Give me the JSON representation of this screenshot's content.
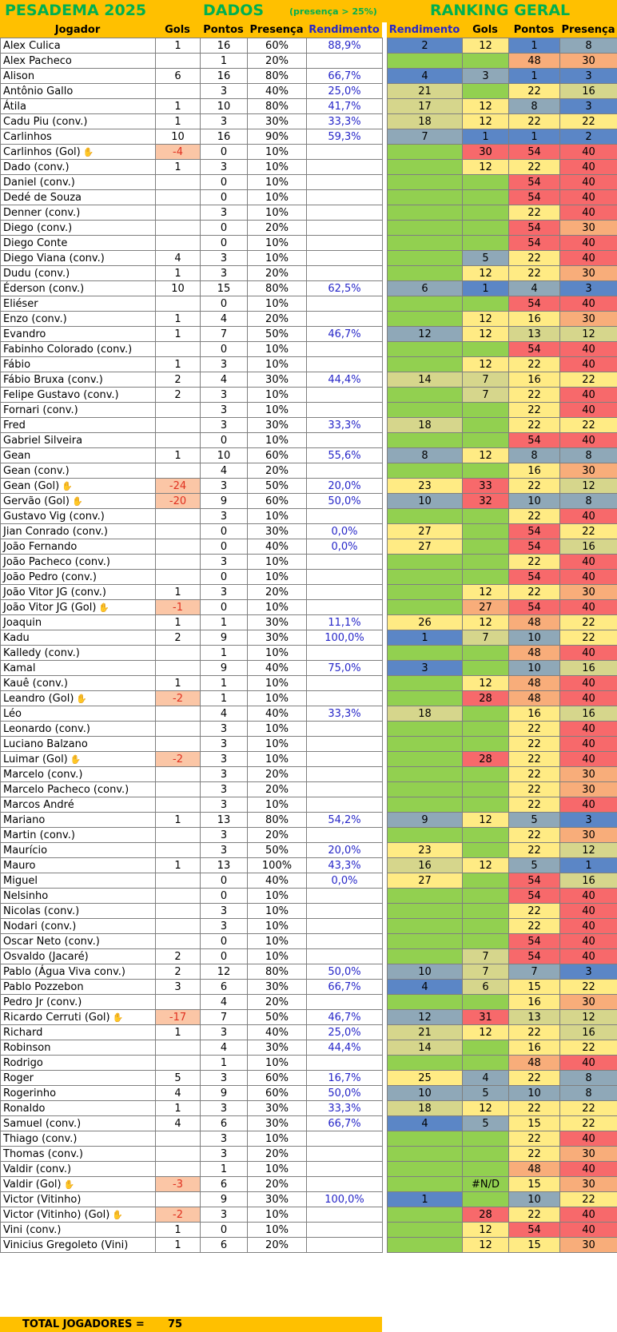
{
  "title": {
    "main": "PESADEMA 2025",
    "dados": "DADOS",
    "note": "(presença > 25%)",
    "ranking": "RANKING GERAL"
  },
  "headers": {
    "jogador": "Jogador",
    "gols": "Gols",
    "pontos": "Pontos",
    "presenca": "Presença",
    "rendimento": "Rendimento",
    "r_rendimento": "Rendimento",
    "r_gols": "Gols",
    "r_pontos": "Pontos",
    "r_presenca": "Presença"
  },
  "colors": {
    "header": "#ffc000",
    "green": "#92d050",
    "yellow": "#ffeb84",
    "khaki": "#d6d68c",
    "grayblue": "#8fa8b8",
    "blue": "#5b86c6",
    "orange": "#f8ad7a",
    "red": "#f7696b",
    "title_green": "#00b050",
    "rend_blue": "#2626c8"
  },
  "footer": {
    "label": "TOTAL JOGADORES =",
    "count": "75"
  },
  "rows": [
    {
      "name": "Alex Culica",
      "gols": "1",
      "pontos": "16",
      "presenca": "60%",
      "rend": "88,9%",
      "rk": [
        "2",
        "12",
        "1",
        "8"
      ]
    },
    {
      "name": "Alex Pacheco",
      "gols": "",
      "pontos": "1",
      "presenca": "20%",
      "rend": "",
      "rk": [
        "",
        "",
        "48",
        "30"
      ]
    },
    {
      "name": "Alison",
      "gols": "6",
      "pontos": "16",
      "presenca": "80%",
      "rend": "66,7%",
      "rk": [
        "4",
        "3",
        "1",
        "3"
      ]
    },
    {
      "name": "Antônio Gallo",
      "gols": "",
      "pontos": "3",
      "presenca": "40%",
      "rend": "25,0%",
      "rk": [
        "21",
        "",
        "22",
        "16"
      ]
    },
    {
      "name": "Átila",
      "gols": "1",
      "pontos": "10",
      "presenca": "80%",
      "rend": "41,7%",
      "rk": [
        "17",
        "12",
        "8",
        "3"
      ]
    },
    {
      "name": "Cadu Piu (conv.)",
      "gols": "1",
      "pontos": "3",
      "presenca": "30%",
      "rend": "33,3%",
      "rk": [
        "18",
        "12",
        "22",
        "22"
      ]
    },
    {
      "name": "Carlinhos",
      "gols": "10",
      "pontos": "16",
      "presenca": "90%",
      "rend": "59,3%",
      "rk": [
        "7",
        "1",
        "1",
        "2"
      ]
    },
    {
      "name": "Carlinhos (Gol)",
      "gk": true,
      "gols": "-4",
      "pontos": "0",
      "presenca": "10%",
      "rend": "",
      "rk": [
        "",
        "30",
        "54",
        "40"
      ]
    },
    {
      "name": "Dado (conv.)",
      "gols": "1",
      "pontos": "3",
      "presenca": "10%",
      "rend": "",
      "rk": [
        "",
        "12",
        "22",
        "40"
      ]
    },
    {
      "name": "Daniel (conv.)",
      "gols": "",
      "pontos": "0",
      "presenca": "10%",
      "rend": "",
      "rk": [
        "",
        "",
        "54",
        "40"
      ]
    },
    {
      "name": "Dedé de Souza",
      "gols": "",
      "pontos": "0",
      "presenca": "10%",
      "rend": "",
      "rk": [
        "",
        "",
        "54",
        "40"
      ]
    },
    {
      "name": "Denner (conv.)",
      "gols": "",
      "pontos": "3",
      "presenca": "10%",
      "rend": "",
      "rk": [
        "",
        "",
        "22",
        "40"
      ]
    },
    {
      "name": "Diego (conv.)",
      "gols": "",
      "pontos": "0",
      "presenca": "20%",
      "rend": "",
      "rk": [
        "",
        "",
        "54",
        "30"
      ]
    },
    {
      "name": "Diego Conte",
      "gols": "",
      "pontos": "0",
      "presenca": "10%",
      "rend": "",
      "rk": [
        "",
        "",
        "54",
        "40"
      ]
    },
    {
      "name": "Diego Viana (conv.)",
      "gols": "4",
      "pontos": "3",
      "presenca": "10%",
      "rend": "",
      "rk": [
        "",
        "5",
        "22",
        "40"
      ]
    },
    {
      "name": "Dudu  (conv.)",
      "gols": "1",
      "pontos": "3",
      "presenca": "20%",
      "rend": "",
      "rk": [
        "",
        "12",
        "22",
        "30"
      ]
    },
    {
      "name": "Éderson (conv.)",
      "gols": "10",
      "pontos": "15",
      "presenca": "80%",
      "rend": "62,5%",
      "rk": [
        "6",
        "1",
        "4",
        "3"
      ]
    },
    {
      "name": "Eliéser",
      "gols": "",
      "pontos": "0",
      "presenca": "10%",
      "rend": "",
      "rk": [
        "",
        "",
        "54",
        "40"
      ]
    },
    {
      "name": "Enzo (conv.)",
      "gols": "1",
      "pontos": "4",
      "presenca": "20%",
      "rend": "",
      "rk": [
        "",
        "12",
        "16",
        "30"
      ]
    },
    {
      "name": "Evandro",
      "gols": "1",
      "pontos": "7",
      "presenca": "50%",
      "rend": "46,7%",
      "rk": [
        "12",
        "12",
        "13",
        "12"
      ]
    },
    {
      "name": "Fabinho Colorado (conv.)",
      "gols": "",
      "pontos": "0",
      "presenca": "10%",
      "rend": "",
      "rk": [
        "",
        "",
        "54",
        "40"
      ]
    },
    {
      "name": "Fábio",
      "gols": "1",
      "pontos": "3",
      "presenca": "10%",
      "rend": "",
      "rk": [
        "",
        "12",
        "22",
        "40"
      ]
    },
    {
      "name": "Fábio Bruxa (conv.)",
      "gols": "2",
      "pontos": "4",
      "presenca": "30%",
      "rend": "44,4%",
      "rk": [
        "14",
        "7",
        "16",
        "22"
      ]
    },
    {
      "name": "Felipe Gustavo (conv.)",
      "gols": "2",
      "pontos": "3",
      "presenca": "10%",
      "rend": "",
      "rk": [
        "",
        "7",
        "22",
        "40"
      ]
    },
    {
      "name": "Fornari (conv.)",
      "gols": "",
      "pontos": "3",
      "presenca": "10%",
      "rend": "",
      "rk": [
        "",
        "",
        "22",
        "40"
      ]
    },
    {
      "name": "Fred",
      "gols": "",
      "pontos": "3",
      "presenca": "30%",
      "rend": "33,3%",
      "rk": [
        "18",
        "",
        "22",
        "22"
      ]
    },
    {
      "name": "Gabriel Silveira",
      "gols": "",
      "pontos": "0",
      "presenca": "10%",
      "rend": "",
      "rk": [
        "",
        "",
        "54",
        "40"
      ]
    },
    {
      "name": "Gean",
      "gols": "1",
      "pontos": "10",
      "presenca": "60%",
      "rend": "55,6%",
      "rk": [
        "8",
        "12",
        "8",
        "8"
      ]
    },
    {
      "name": "Gean (conv.)",
      "gols": "",
      "pontos": "4",
      "presenca": "20%",
      "rend": "",
      "rk": [
        "",
        "",
        "16",
        "30"
      ]
    },
    {
      "name": "Gean (Gol)",
      "gk": true,
      "gols": "-24",
      "pontos": "3",
      "presenca": "50%",
      "rend": "20,0%",
      "rk": [
        "23",
        "33",
        "22",
        "12"
      ]
    },
    {
      "name": "Gervão (Gol)",
      "gk": true,
      "gols": "-20",
      "pontos": "9",
      "presenca": "60%",
      "rend": "50,0%",
      "rk": [
        "10",
        "32",
        "10",
        "8"
      ]
    },
    {
      "name": "Gustavo Vig (conv.)",
      "gols": "",
      "pontos": "3",
      "presenca": "10%",
      "rend": "",
      "rk": [
        "",
        "",
        "22",
        "40"
      ]
    },
    {
      "name": "Jian Conrado (conv.)",
      "gols": "",
      "pontos": "0",
      "presenca": "30%",
      "rend": "0,0%",
      "rk": [
        "27",
        "",
        "54",
        "22"
      ]
    },
    {
      "name": "João Fernando",
      "gols": "",
      "pontos": "0",
      "presenca": "40%",
      "rend": "0,0%",
      "rk": [
        "27",
        "",
        "54",
        "16"
      ]
    },
    {
      "name": "João Pacheco (conv.)",
      "gols": "",
      "pontos": "3",
      "presenca": "10%",
      "rend": "",
      "rk": [
        "",
        "",
        "22",
        "40"
      ]
    },
    {
      "name": "João Pedro (conv.)",
      "gols": "",
      "pontos": "0",
      "presenca": "10%",
      "rend": "",
      "rk": [
        "",
        "",
        "54",
        "40"
      ]
    },
    {
      "name": "João Vitor JG (conv.)",
      "gols": "1",
      "pontos": "3",
      "presenca": "20%",
      "rend": "",
      "rk": [
        "",
        "12",
        "22",
        "30"
      ]
    },
    {
      "name": "João Vitor JG (Gol)",
      "gk": true,
      "gols": "-1",
      "pontos": "0",
      "presenca": "10%",
      "rend": "",
      "rk": [
        "",
        "27",
        "54",
        "40"
      ]
    },
    {
      "name": "Joaquin",
      "gols": "1",
      "pontos": "1",
      "presenca": "30%",
      "rend": "11,1%",
      "rk": [
        "26",
        "12",
        "48",
        "22"
      ]
    },
    {
      "name": "Kadu",
      "gols": "2",
      "pontos": "9",
      "presenca": "30%",
      "rend": "100,0%",
      "rk": [
        "1",
        "7",
        "10",
        "22"
      ]
    },
    {
      "name": "Kalledy (conv.)",
      "gols": "",
      "pontos": "1",
      "presenca": "10%",
      "rend": "",
      "rk": [
        "",
        "",
        "48",
        "40"
      ]
    },
    {
      "name": "Kamal",
      "gols": "",
      "pontos": "9",
      "presenca": "40%",
      "rend": "75,0%",
      "rk": [
        "3",
        "",
        "10",
        "16"
      ]
    },
    {
      "name": "Kauê (conv.)",
      "gols": "1",
      "pontos": "1",
      "presenca": "10%",
      "rend": "",
      "rk": [
        "",
        "12",
        "48",
        "40"
      ]
    },
    {
      "name": "Leandro (Gol)",
      "gk": true,
      "gols": "-2",
      "pontos": "1",
      "presenca": "10%",
      "rend": "",
      "rk": [
        "",
        "28",
        "48",
        "40"
      ]
    },
    {
      "name": "Léo",
      "gols": "",
      "pontos": "4",
      "presenca": "40%",
      "rend": "33,3%",
      "rk": [
        "18",
        "",
        "16",
        "16"
      ]
    },
    {
      "name": "Leonardo (conv.)",
      "gols": "",
      "pontos": "3",
      "presenca": "10%",
      "rend": "",
      "rk": [
        "",
        "",
        "22",
        "40"
      ]
    },
    {
      "name": "Luciano Balzano",
      "gols": "",
      "pontos": "3",
      "presenca": "10%",
      "rend": "",
      "rk": [
        "",
        "",
        "22",
        "40"
      ]
    },
    {
      "name": "Luimar (Gol)",
      "gk": true,
      "gols": "-2",
      "pontos": "3",
      "presenca": "10%",
      "rend": "",
      "rk": [
        "",
        "28",
        "22",
        "40"
      ]
    },
    {
      "name": "Marcelo (conv.)",
      "gols": "",
      "pontos": "3",
      "presenca": "20%",
      "rend": "",
      "rk": [
        "",
        "",
        "22",
        "30"
      ]
    },
    {
      "name": "Marcelo Pacheco (conv.)",
      "gols": "",
      "pontos": "3",
      "presenca": "20%",
      "rend": "",
      "rk": [
        "",
        "",
        "22",
        "30"
      ]
    },
    {
      "name": "Marcos André",
      "gols": "",
      "pontos": "3",
      "presenca": "10%",
      "rend": "",
      "rk": [
        "",
        "",
        "22",
        "40"
      ]
    },
    {
      "name": "Mariano",
      "gols": "1",
      "pontos": "13",
      "presenca": "80%",
      "rend": "54,2%",
      "rk": [
        "9",
        "12",
        "5",
        "3"
      ]
    },
    {
      "name": "Martin (conv.)",
      "gols": "",
      "pontos": "3",
      "presenca": "20%",
      "rend": "",
      "rk": [
        "",
        "",
        "22",
        "30"
      ]
    },
    {
      "name": "Maurício",
      "gols": "",
      "pontos": "3",
      "presenca": "50%",
      "rend": "20,0%",
      "rk": [
        "23",
        "",
        "22",
        "12"
      ]
    },
    {
      "name": "Mauro",
      "gols": "1",
      "pontos": "13",
      "presenca": "100%",
      "rend": "43,3%",
      "rk": [
        "16",
        "12",
        "5",
        "1"
      ]
    },
    {
      "name": "Miguel",
      "gols": "",
      "pontos": "0",
      "presenca": "40%",
      "rend": "0,0%",
      "rk": [
        "27",
        "",
        "54",
        "16"
      ]
    },
    {
      "name": "Nelsinho",
      "gols": "",
      "pontos": "0",
      "presenca": "10%",
      "rend": "",
      "rk": [
        "",
        "",
        "54",
        "40"
      ]
    },
    {
      "name": "Nicolas (conv.)",
      "gols": "",
      "pontos": "3",
      "presenca": "10%",
      "rend": "",
      "rk": [
        "",
        "",
        "22",
        "40"
      ]
    },
    {
      "name": "Nodari (conv.)",
      "gols": "",
      "pontos": "3",
      "presenca": "10%",
      "rend": "",
      "rk": [
        "",
        "",
        "22",
        "40"
      ]
    },
    {
      "name": "Oscar Neto (conv.)",
      "gols": "",
      "pontos": "0",
      "presenca": "10%",
      "rend": "",
      "rk": [
        "",
        "",
        "54",
        "40"
      ]
    },
    {
      "name": "Osvaldo (Jacaré)",
      "gols": "2",
      "pontos": "0",
      "presenca": "10%",
      "rend": "",
      "rk": [
        "",
        "7",
        "54",
        "40"
      ]
    },
    {
      "name": "Pablo (Água Viva conv.)",
      "gols": "2",
      "pontos": "12",
      "presenca": "80%",
      "rend": "50,0%",
      "rk": [
        "10",
        "7",
        "7",
        "3"
      ]
    },
    {
      "name": "Pablo Pozzebon",
      "gols": "3",
      "pontos": "6",
      "presenca": "30%",
      "rend": "66,7%",
      "rk": [
        "4",
        "6",
        "15",
        "22"
      ]
    },
    {
      "name": "Pedro Jr (conv.)",
      "gols": "",
      "pontos": "4",
      "presenca": "20%",
      "rend": "",
      "rk": [
        "",
        "",
        "16",
        "30"
      ]
    },
    {
      "name": "Ricardo Cerruti (Gol)",
      "gk": true,
      "gols": "-17",
      "pontos": "7",
      "presenca": "50%",
      "rend": "46,7%",
      "rk": [
        "12",
        "31",
        "13",
        "12"
      ]
    },
    {
      "name": "Richard",
      "gols": "1",
      "pontos": "3",
      "presenca": "40%",
      "rend": "25,0%",
      "rk": [
        "21",
        "12",
        "22",
        "16"
      ]
    },
    {
      "name": "Robinson",
      "gols": "",
      "pontos": "4",
      "presenca": "30%",
      "rend": "44,4%",
      "rk": [
        "14",
        "",
        "16",
        "22"
      ]
    },
    {
      "name": "Rodrigo",
      "gols": "",
      "pontos": "1",
      "presenca": "10%",
      "rend": "",
      "rk": [
        "",
        "",
        "48",
        "40"
      ]
    },
    {
      "name": "Roger",
      "gols": "5",
      "pontos": "3",
      "presenca": "60%",
      "rend": "16,7%",
      "rk": [
        "25",
        "4",
        "22",
        "8"
      ]
    },
    {
      "name": "Rogerinho",
      "gols": "4",
      "pontos": "9",
      "presenca": "60%",
      "rend": "50,0%",
      "rk": [
        "10",
        "5",
        "10",
        "8"
      ]
    },
    {
      "name": "Ronaldo",
      "gols": "1",
      "pontos": "3",
      "presenca": "30%",
      "rend": "33,3%",
      "rk": [
        "18",
        "12",
        "22",
        "22"
      ]
    },
    {
      "name": "Samuel (conv.)",
      "gols": "4",
      "pontos": "6",
      "presenca": "30%",
      "rend": "66,7%",
      "rk": [
        "4",
        "5",
        "15",
        "22"
      ]
    },
    {
      "name": "Thiago (conv.)",
      "gols": "",
      "pontos": "3",
      "presenca": "10%",
      "rend": "",
      "rk": [
        "",
        "",
        "22",
        "40"
      ]
    },
    {
      "name": "Thomas (conv.)",
      "gols": "",
      "pontos": "3",
      "presenca": "20%",
      "rend": "",
      "rk": [
        "",
        "",
        "22",
        "30"
      ]
    },
    {
      "name": "Valdir (conv.)",
      "gols": "",
      "pontos": "1",
      "presenca": "10%",
      "rend": "",
      "rk": [
        "",
        "",
        "48",
        "40"
      ]
    },
    {
      "name": "Valdir (Gol)",
      "gk": true,
      "gols": "-3",
      "pontos": "6",
      "presenca": "20%",
      "rend": "",
      "rk": [
        "",
        "#N/D",
        "15",
        "30"
      ]
    },
    {
      "name": "Victor (Vitinho)",
      "gols": "",
      "pontos": "9",
      "presenca": "30%",
      "rend": "100,0%",
      "rk": [
        "1",
        "",
        "10",
        "22"
      ]
    },
    {
      "name": "Victor (Vitinho) (Gol)",
      "gk": true,
      "gols": "-2",
      "pontos": "3",
      "presenca": "10%",
      "rend": "",
      "rk": [
        "",
        "28",
        "22",
        "40"
      ]
    },
    {
      "name": "Vini (conv.)",
      "gols": "1",
      "pontos": "0",
      "presenca": "10%",
      "rend": "",
      "rk": [
        "",
        "12",
        "54",
        "40"
      ]
    },
    {
      "name": "Vinicius Gregoleto (Vini)",
      "gols": "1",
      "pontos": "6",
      "presenca": "20%",
      "rend": "",
      "rk": [
        "",
        "12",
        "15",
        "30"
      ]
    }
  ]
}
